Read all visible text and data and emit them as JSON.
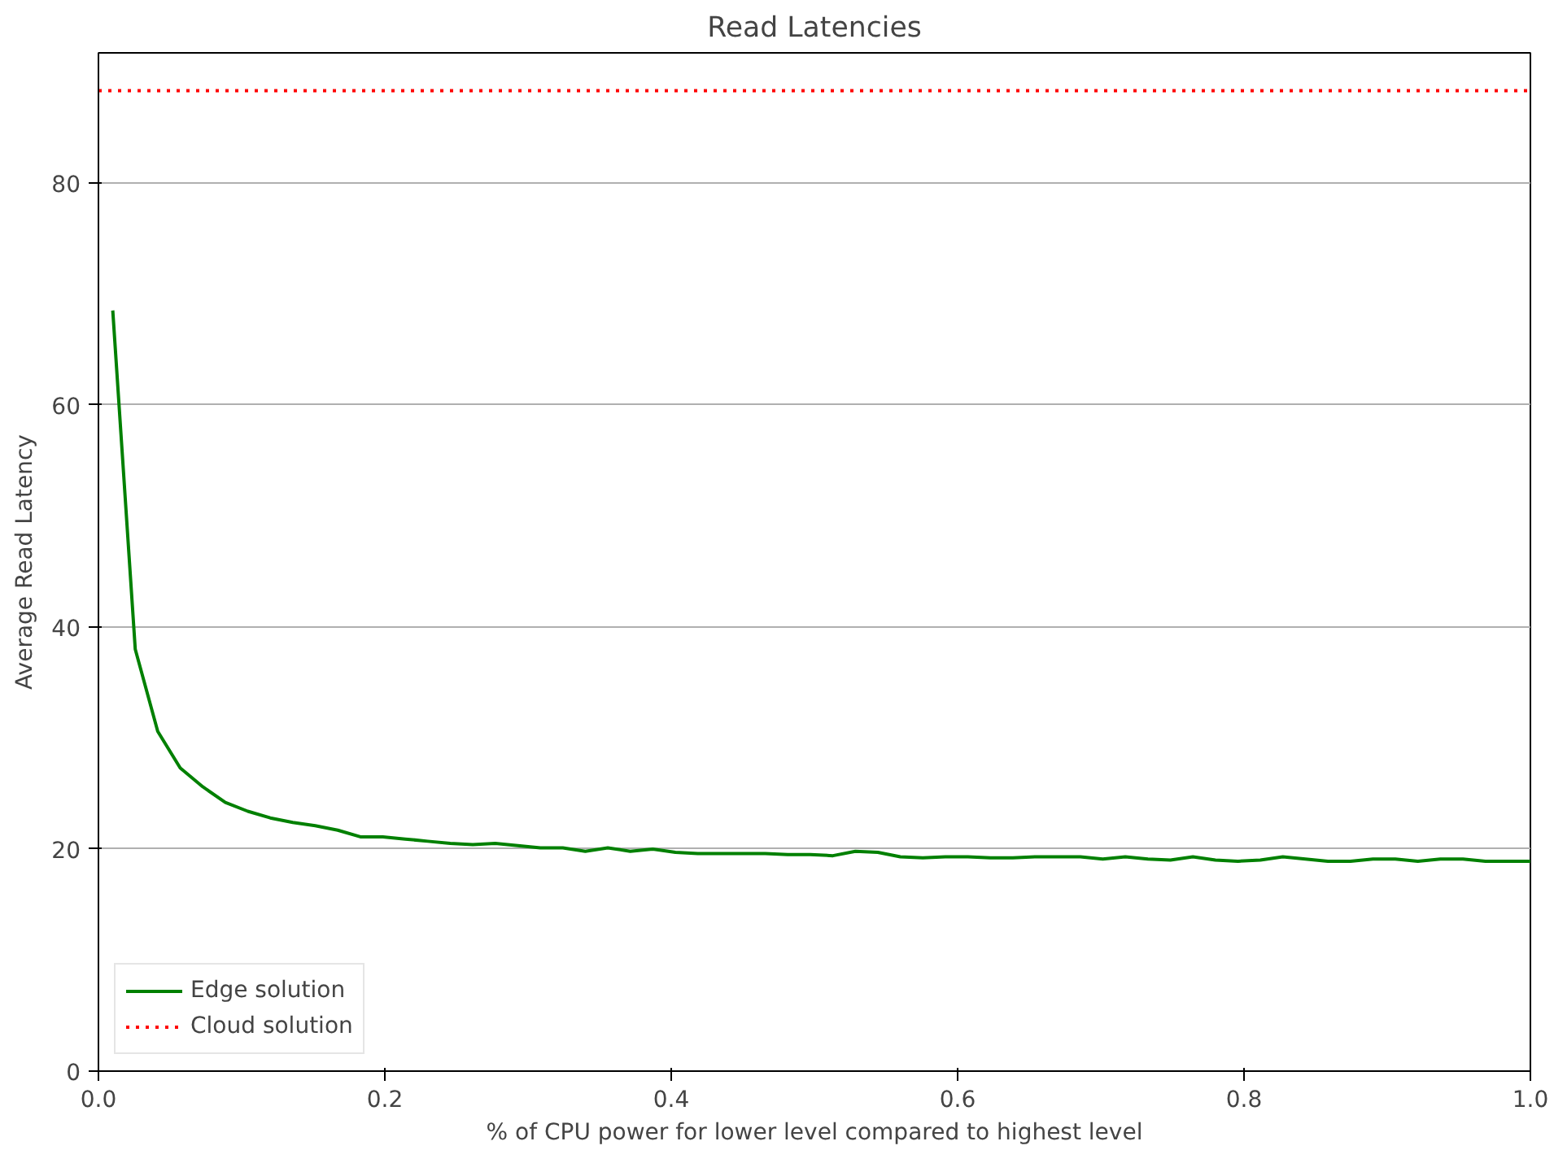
{
  "chart_data": {
    "type": "line",
    "title": "Read Latencies",
    "xlabel": "% of CPU power for lower level compared to highest level",
    "ylabel": "Average Read Latency",
    "x": [
      0.01,
      0.0257,
      0.0414,
      0.0571,
      0.0729,
      0.0886,
      0.1043,
      0.12,
      0.1357,
      0.1514,
      0.1671,
      0.1829,
      0.1986,
      0.2143,
      0.23,
      0.2457,
      0.2614,
      0.2771,
      0.2929,
      0.3086,
      0.3243,
      0.34,
      0.3557,
      0.3714,
      0.3871,
      0.4029,
      0.4186,
      0.4343,
      0.45,
      0.4657,
      0.4814,
      0.4971,
      0.5129,
      0.5286,
      0.5443,
      0.56,
      0.5757,
      0.5914,
      0.6071,
      0.6229,
      0.6386,
      0.6543,
      0.67,
      0.6857,
      0.7014,
      0.7171,
      0.7329,
      0.7486,
      0.7643,
      0.78,
      0.7957,
      0.8114,
      0.8271,
      0.8429,
      0.8586,
      0.8743,
      0.89,
      0.9057,
      0.9214,
      0.9371,
      0.9529,
      0.9686,
      0.9843,
      1.0
    ],
    "series": [
      {
        "name": "Edge solution",
        "color": "#008000",
        "values": [
          68.5,
          38.0,
          30.6,
          27.3,
          25.6,
          24.2,
          23.4,
          22.8,
          22.4,
          22.1,
          21.7,
          21.1,
          21.1,
          20.9,
          20.7,
          20.5,
          20.4,
          20.5,
          20.3,
          20.1,
          20.1,
          19.8,
          20.1,
          19.8,
          20.0,
          19.7,
          19.6,
          19.6,
          19.6,
          19.6,
          19.5,
          19.5,
          19.4,
          19.8,
          19.7,
          19.3,
          19.2,
          19.3,
          19.3,
          19.2,
          19.2,
          19.3,
          19.3,
          19.3,
          19.1,
          19.3,
          19.1,
          19.0,
          19.3,
          19.0,
          18.9,
          19.0,
          19.3,
          19.1,
          18.9,
          18.9,
          19.1,
          19.1,
          18.9,
          19.1,
          19.1,
          18.9,
          18.9,
          18.9
        ]
      }
    ],
    "ref_lines": [
      {
        "axis": "y",
        "value": 88.3,
        "label": "Cloud solution",
        "color": "#ff0000",
        "line_style": "dotted"
      }
    ],
    "xlim": [
      0,
      1.0
    ],
    "xticks": [
      {
        "value": 0,
        "label": "0.0"
      },
      0.2,
      0.4,
      0.6,
      0.8,
      {
        "value": 1.0,
        "label": "1.0"
      }
    ],
    "ylim": [
      0,
      91.7
    ],
    "yticks": [
      0,
      20,
      40,
      60,
      80
    ],
    "grid": "y",
    "legend": "bottom left",
    "line_style": "solid",
    "marker": "none"
  }
}
